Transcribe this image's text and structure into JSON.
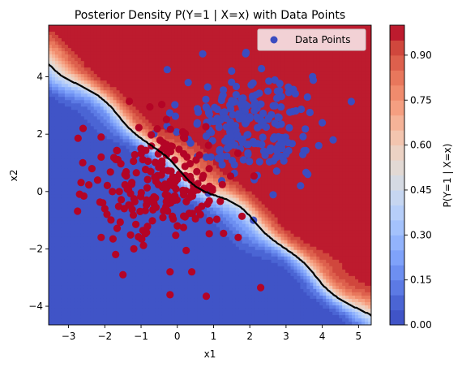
{
  "chart_data": {
    "type": "contour-scatter",
    "title": "Posterior Density P(Y=1 | X=x) with Data Points",
    "xlabel": "x1",
    "ylabel": "x2",
    "xlim": [
      -3.55,
      5.35
    ],
    "ylim": [
      -4.65,
      5.8
    ],
    "xticks": [
      -3,
      -2,
      -1,
      0,
      1,
      2,
      3,
      4,
      5
    ],
    "yticks": [
      -4,
      -2,
      0,
      2,
      4
    ],
    "grid": false,
    "legend": {
      "position": "top-right",
      "entries": [
        "Data Points"
      ]
    },
    "colorbar": {
      "label": "P(Y=1 | X=x)",
      "ticks": [
        "0.00",
        "0.15",
        "0.30",
        "0.45",
        "0.60",
        "0.75",
        "0.90"
      ],
      "tick_values": [
        0.0,
        0.15,
        0.3,
        0.45,
        0.6,
        0.75,
        0.9
      ],
      "range": [
        0.0,
        1.0
      ],
      "levels": 20
    },
    "colormap": [
      "#3b4cc0",
      "#4a63d3",
      "#6282ea",
      "#7b9ff9",
      "#96b6fd",
      "#b0cbfc",
      "#c7d7f0",
      "#dddcdc",
      "#ecd3c5",
      "#f5c0a7",
      "#f6a385",
      "#ef8769",
      "#e26952",
      "#cf453c",
      "#b40426"
    ],
    "decision_boundary_level": 0.5,
    "class_colors": {
      "class_0": "#b40426",
      "class_1": "#3b4cc0"
    },
    "class_0_points": {
      "center": [
        -0.3,
        0.2
      ],
      "count": 230,
      "examples": [
        [
          -2.6,
          2.2
        ],
        [
          -2.1,
          1.9
        ],
        [
          -2.1,
          1.2
        ],
        [
          -2.1,
          -1.6
        ],
        [
          -1.5,
          -2.9
        ],
        [
          -1.2,
          -2.0
        ],
        [
          -0.2,
          -3.6
        ],
        [
          0.8,
          -3.65
        ],
        [
          2.3,
          -3.35
        ],
        [
          0.4,
          -2.8
        ],
        [
          -0.2,
          -2.8
        ],
        [
          -2.2,
          0.4
        ],
        [
          -2.0,
          -0.6
        ],
        [
          -1.6,
          0.0
        ],
        [
          -1.0,
          1.5
        ]
      ]
    },
    "class_1_points": {
      "center": [
        1.9,
        2.4
      ],
      "count": 230,
      "examples": [
        [
          0.7,
          4.8
        ],
        [
          4.3,
          1.8
        ],
        [
          3.9,
          1.6
        ],
        [
          3.6,
          0.6
        ],
        [
          3.4,
          0.2
        ],
        [
          2.1,
          -1.0
        ],
        [
          4.0,
          2.4
        ],
        [
          2.2,
          2.9
        ],
        [
          1.5,
          4.2
        ],
        [
          2.5,
          3.5
        ],
        [
          0.3,
          3.8
        ],
        [
          3.0,
          1.3
        ]
      ]
    }
  }
}
